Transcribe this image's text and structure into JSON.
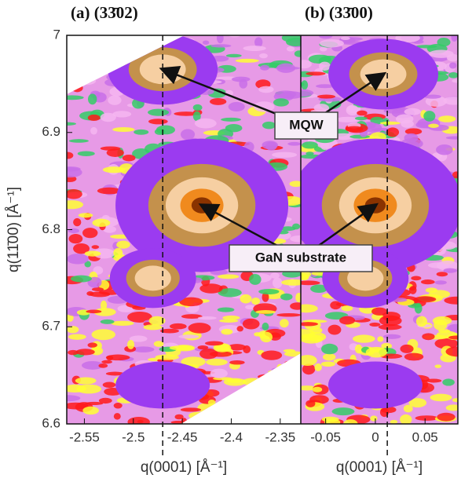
{
  "annotations": [
    "MQW",
    "GaN substrate"
  ],
  "chart_data": [
    {
      "type": "contour",
      "title": "(a) (33̄02)",
      "xlabel": "q(0001) [Å⁻¹]",
      "ylabel": "q(11̄00) [Å⁻¹]",
      "xlim": [
        -2.568,
        -2.329
      ],
      "ylim": [
        6.6,
        7.0
      ],
      "xticks": [
        -2.55,
        -2.5,
        -2.45,
        -2.4,
        -2.35
      ],
      "yticks": [
        6.6,
        6.7,
        6.8,
        6.9,
        7
      ],
      "vline": -2.47,
      "x": [
        -2.47,
        -2.43,
        -2.48,
        -2.47
      ],
      "y": [
        6.965,
        6.825,
        6.75,
        6.64
      ]
    },
    {
      "type": "contour",
      "title": "(b) (33̄00)",
      "xlabel": "q(0001) [Å⁻¹]",
      "xlim": [
        -0.075,
        0.083
      ],
      "ylim": [
        6.6,
        7.0
      ],
      "xticks": [
        -0.05,
        0,
        0.05
      ],
      "vline": 0.012,
      "x": [
        0.008,
        0.0,
        -0.01,
        0.0
      ],
      "y": [
        6.96,
        6.825,
        6.75,
        6.64
      ]
    }
  ]
}
